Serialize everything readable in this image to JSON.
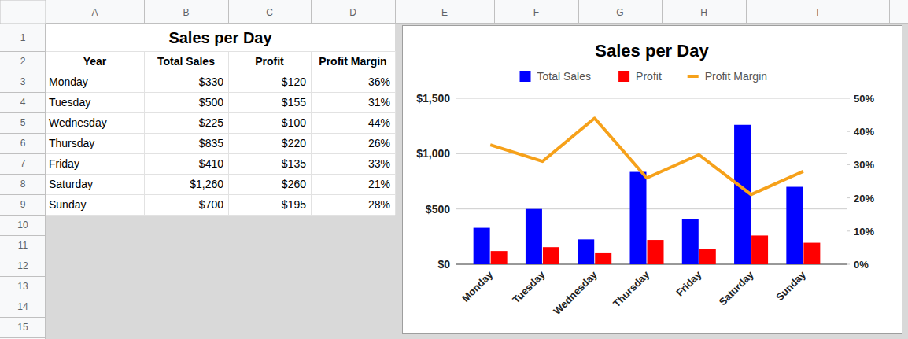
{
  "sheet": {
    "columns": [
      "A",
      "B",
      "C",
      "D",
      "E",
      "F",
      "G",
      "H",
      "I"
    ],
    "rows": [
      1,
      2,
      3,
      4,
      5,
      6,
      7,
      8,
      9,
      10,
      11,
      12,
      13,
      14,
      15
    ],
    "table": {
      "title": "Sales per Day",
      "header": [
        "Year",
        "Total Sales",
        "Profit",
        "Profit Margin"
      ],
      "rows": [
        [
          "Monday",
          "$330",
          "$120",
          "36%"
        ],
        [
          "Tuesday",
          "$500",
          "$155",
          "31%"
        ],
        [
          "Wednesday",
          "$225",
          "$100",
          "44%"
        ],
        [
          "Thursday",
          "$835",
          "$220",
          "26%"
        ],
        [
          "Friday",
          "$410",
          "$135",
          "33%"
        ],
        [
          "Saturday",
          "$1,260",
          "$260",
          "21%"
        ],
        [
          "Sunday",
          "$700",
          "$195",
          "28%"
        ]
      ]
    }
  },
  "chart_data": {
    "type": "bar",
    "title": "Sales per Day",
    "categories": [
      "Monday",
      "Tuesday",
      "Wednesday",
      "Thursday",
      "Friday",
      "Saturday",
      "Sunday"
    ],
    "series": [
      {
        "name": "Total Sales",
        "type": "bar",
        "color": "#0000ff",
        "values": [
          330,
          500,
          225,
          835,
          410,
          1260,
          700
        ]
      },
      {
        "name": "Profit",
        "type": "bar",
        "color": "#ff0000",
        "values": [
          120,
          155,
          100,
          220,
          135,
          260,
          195
        ]
      },
      {
        "name": "Profit Margin",
        "type": "line",
        "color": "#f6a11a",
        "axis": "y2",
        "values": [
          36,
          31,
          44,
          26,
          33,
          21,
          28
        ]
      }
    ],
    "ylim": [
      0,
      1500
    ],
    "yticks": [
      {
        "value": 0,
        "label": "$0"
      },
      {
        "value": 500,
        "label": "$500"
      },
      {
        "value": 1000,
        "label": "$1,000"
      },
      {
        "value": 1500,
        "label": "$1,500"
      }
    ],
    "y2lim": [
      0,
      50
    ],
    "y2ticks": [
      {
        "value": 0,
        "label": "0%"
      },
      {
        "value": 10,
        "label": "10%"
      },
      {
        "value": 20,
        "label": "20%"
      },
      {
        "value": 30,
        "label": "30%"
      },
      {
        "value": 40,
        "label": "40%"
      },
      {
        "value": 50,
        "label": "50%"
      }
    ],
    "grid": true,
    "legend": "top"
  }
}
